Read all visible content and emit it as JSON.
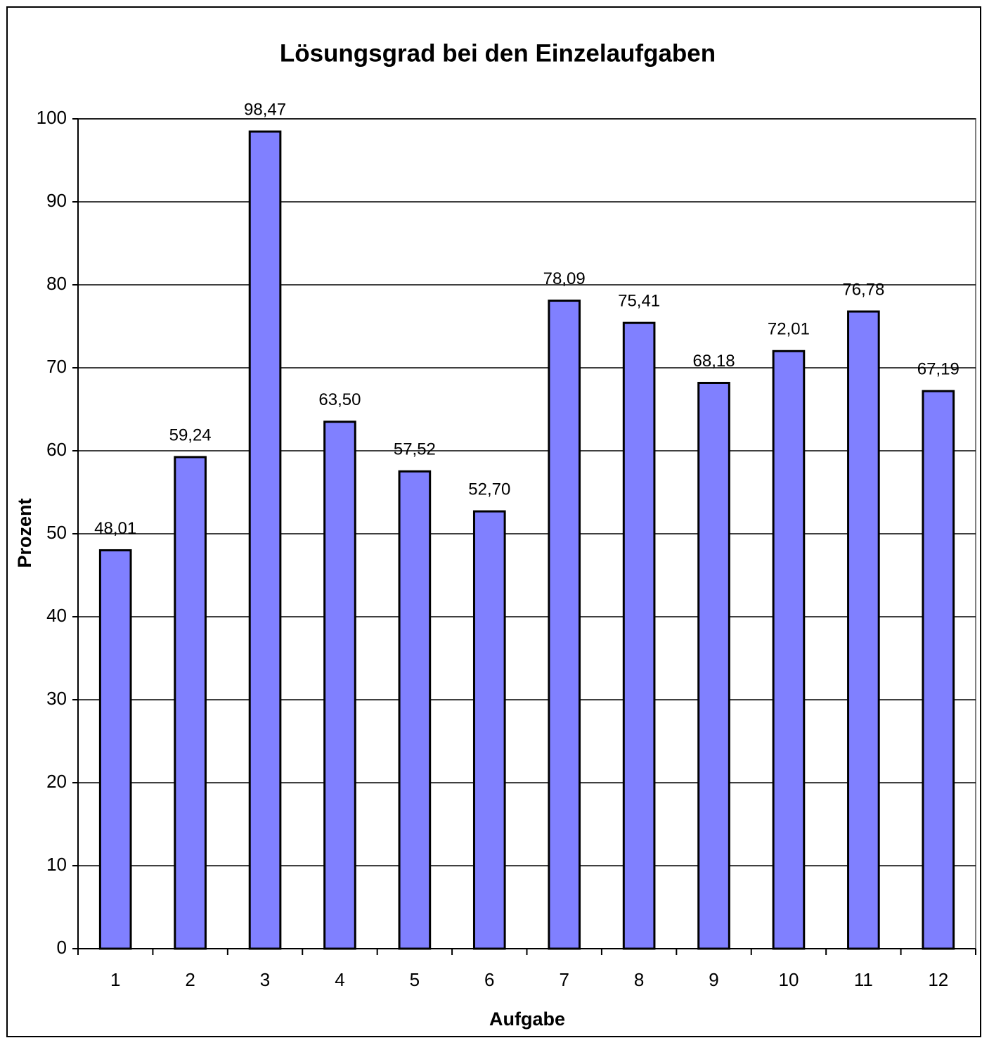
{
  "chart_data": {
    "type": "bar",
    "title": "Lösungsgrad bei den Einzelaufgaben",
    "x_label": "Aufgabe",
    "y_label": "Prozent",
    "categories": [
      "1",
      "2",
      "3",
      "4",
      "5",
      "6",
      "7",
      "8",
      "9",
      "10",
      "11",
      "12"
    ],
    "values": [
      48.01,
      59.24,
      98.47,
      63.5,
      57.52,
      52.7,
      78.09,
      75.41,
      68.18,
      72.01,
      76.78,
      67.19
    ],
    "value_labels": [
      "48,01",
      "59,24",
      "98,47",
      "63,50",
      "57,52",
      "52,70",
      "78,09",
      "75,41",
      "68,18",
      "72,01",
      "76,78",
      "67,19"
    ],
    "color": "#8080ff",
    "ylim": [
      0,
      100
    ],
    "yticks": [
      0,
      10,
      20,
      30,
      40,
      50,
      60,
      70,
      80,
      90,
      100
    ],
    "grid": true
  }
}
